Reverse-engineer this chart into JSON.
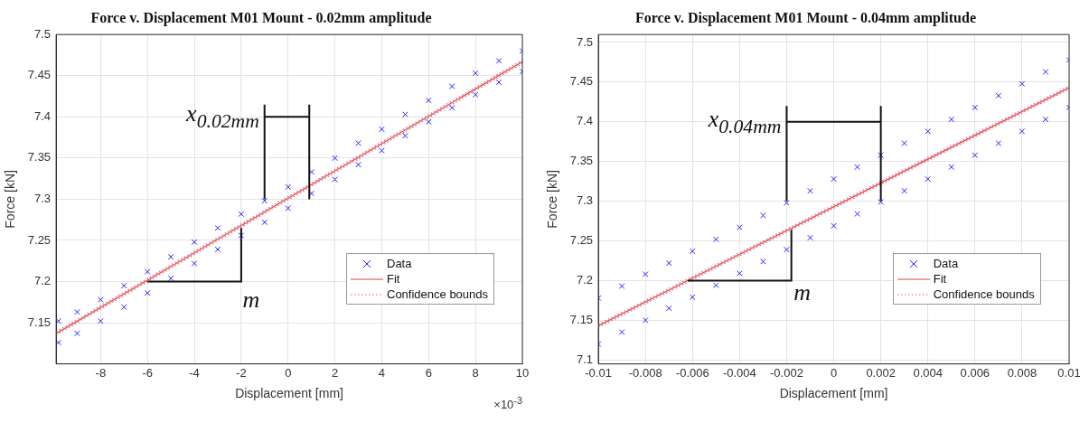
{
  "chart_data": [
    {
      "type": "scatter",
      "title": "Force v. Displacement M01 Mount - 0.02mm amplitude",
      "xlabel": "Displacement [mm]",
      "ylabel": "Force [kN]",
      "xlim": [
        -9.9,
        10
      ],
      "xticks": [
        -8,
        -6,
        -4,
        -2,
        0,
        2,
        4,
        6,
        8,
        10
      ],
      "ylim": [
        7.1,
        7.5
      ],
      "yticks": [
        7.15,
        7.2,
        7.25,
        7.3,
        7.35,
        7.4,
        7.45,
        7.5
      ],
      "grid": true,
      "legend": "bottom right",
      "annotations": [
        {
          "text": "x$_{0.02mm}$",
          "x": -1,
          "y": 7.298
        },
        "m",
        "×10$^{-3}$"
      ],
      "series": [
        {
          "name": "Data",
          "type": "scatter",
          "marker": "cross",
          "color": "#2020ff",
          "x": [
            -9.8,
            -9,
            -8,
            -7,
            -6,
            -5,
            -4,
            -3,
            -2,
            -1,
            0,
            1,
            2,
            3,
            4,
            5,
            6,
            7,
            8,
            9,
            10,
            -9.8,
            -9,
            -8,
            -7,
            -6,
            -5,
            -4,
            -3,
            -2,
            -1,
            0,
            1,
            2,
            3,
            4,
            5,
            6,
            7,
            8,
            9,
            10
          ],
          "values": [
            7.152,
            7.163,
            7.178,
            7.195,
            7.212,
            7.23,
            7.248,
            7.265,
            7.282,
            7.298,
            7.315,
            7.333,
            7.35,
            7.368,
            7.385,
            7.403,
            7.42,
            7.437,
            7.453,
            7.468,
            7.48,
            7.126,
            7.137,
            7.152,
            7.169,
            7.186,
            7.204,
            7.222,
            7.239,
            7.256,
            7.272,
            7.289,
            7.307,
            7.324,
            7.342,
            7.359,
            7.377,
            7.394,
            7.411,
            7.427,
            7.442,
            7.455
          ]
        },
        {
          "name": "Fit",
          "type": "line",
          "line_style": "solid",
          "color": "#e04040",
          "x": [
            -9.9,
            10
          ],
          "values": [
            7.137,
            7.467
          ]
        },
        {
          "name": "Confidence bounds",
          "type": "line",
          "line_style": "dotted",
          "color": "#e06080",
          "x": [
            -9.9,
            10
          ],
          "values": [
            7.139,
            7.469
          ]
        },
        {
          "type": "line",
          "line_style": "dotted",
          "color": "#e06080",
          "x": [
            -9.9,
            10
          ],
          "values": [
            7.135,
            7.465
          ]
        }
      ]
    },
    {
      "type": "scatter",
      "title": "Force v. Displacement M01 Mount - 0.04mm amplitude",
      "xlabel": "Displacement [mm]",
      "ylabel": "Force [kN]",
      "xlim": [
        -0.01,
        0.01
      ],
      "xticks": [
        -0.01,
        -0.008,
        -0.006,
        -0.004,
        -0.002,
        0,
        0.002,
        0.004,
        0.006,
        0.008,
        0.01
      ],
      "ylim": [
        7.095,
        7.51
      ],
      "yticks": [
        7.1,
        7.15,
        7.2,
        7.25,
        7.3,
        7.35,
        7.4,
        7.45,
        7.5
      ],
      "grid": true,
      "legend": "bottom right",
      "annotations": [
        {
          "text": "x$_{0.04mm}$",
          "x": -0.002,
          "y": 7.298
        },
        "m"
      ],
      "series": [
        {
          "name": "Data",
          "type": "scatter",
          "marker": "cross",
          "color": "#2020ff",
          "x": [
            -0.01,
            -0.009,
            -0.008,
            -0.007,
            -0.006,
            -0.005,
            -0.004,
            -0.003,
            -0.002,
            -0.001,
            0,
            0.001,
            0.002,
            0.003,
            0.004,
            0.005,
            0.006,
            0.007,
            0.008,
            0.009,
            0.01,
            -0.01,
            -0.009,
            -0.008,
            -0.007,
            -0.006,
            -0.005,
            -0.004,
            -0.003,
            -0.002,
            -0.001,
            0,
            0.001,
            0.002,
            0.003,
            0.004,
            0.005,
            0.006,
            0.007,
            0.008,
            0.009,
            0.01
          ],
          "values": [
            7.178,
            7.193,
            7.208,
            7.222,
            7.237,
            7.252,
            7.267,
            7.282,
            7.298,
            7.313,
            7.328,
            7.343,
            7.358,
            7.373,
            7.388,
            7.403,
            7.418,
            7.433,
            7.448,
            7.463,
            7.478,
            7.12,
            7.135,
            7.15,
            7.165,
            7.179,
            7.194,
            7.209,
            7.224,
            7.239,
            7.254,
            7.269,
            7.284,
            7.299,
            7.313,
            7.328,
            7.343,
            7.358,
            7.373,
            7.388,
            7.403,
            7.418
          ]
        },
        {
          "name": "Fit",
          "type": "line",
          "line_style": "solid",
          "color": "#e04040",
          "x": [
            -0.01,
            0.01
          ],
          "values": [
            7.143,
            7.443
          ]
        },
        {
          "name": "Confidence bounds",
          "type": "line",
          "line_style": "dotted",
          "color": "#e06080",
          "x": [
            -0.01,
            0.01
          ],
          "values": [
            7.145,
            7.445
          ]
        },
        {
          "type": "line",
          "line_style": "dotted",
          "color": "#e06080",
          "x": [
            -0.01,
            0.01
          ],
          "values": [
            7.141,
            7.441
          ]
        }
      ]
    }
  ]
}
